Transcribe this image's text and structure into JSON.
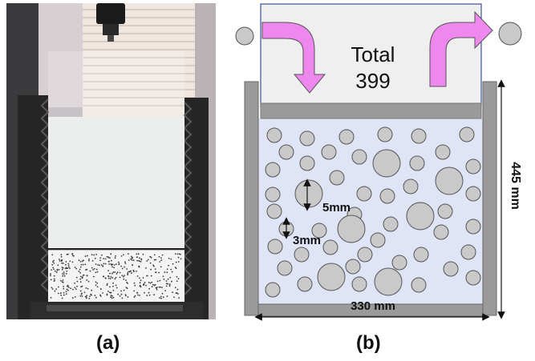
{
  "panel_a": {
    "caption": "(a)",
    "content": "photograph"
  },
  "panel_b": {
    "caption": "(b)",
    "hopper_label_line1": "Total",
    "hopper_label_line2": "399",
    "width_label": "330 mm",
    "height_label": "445 mm",
    "large_particle_label": "5mm",
    "small_particle_label": "3mm",
    "colors": {
      "container_fill": "#dfe4f7",
      "hopper_fill": "#efefef",
      "wall_gray": "#9a9a9a",
      "particle_fill": "#c9c9c9",
      "arrow_magenta": "#ee88ee"
    }
  }
}
